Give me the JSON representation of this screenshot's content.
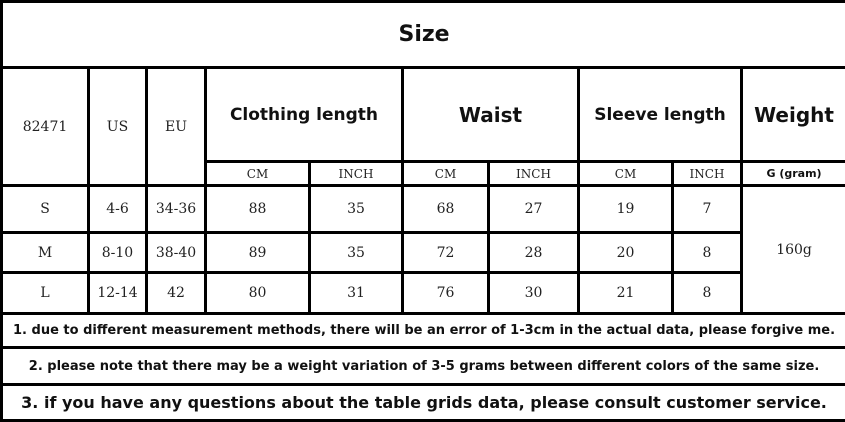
{
  "title": "Size",
  "header": {
    "style_no": "82471",
    "us": "US",
    "eu": "EU",
    "clothing_length": "Clothing length",
    "waist": "Waist",
    "sleeve_length": "Sleeve length",
    "weight": "Weight",
    "cm": "CM",
    "inch": "INCH",
    "weight_unit": "G (gram)"
  },
  "rows": [
    {
      "size": "S",
      "us": "4-6",
      "eu": "34-36",
      "length_cm": "88",
      "length_inch": "35",
      "waist_cm": "68",
      "waist_inch": "27",
      "sleeve_cm": "19",
      "sleeve_inch": "7"
    },
    {
      "size": "M",
      "us": "8-10",
      "eu": "38-40",
      "length_cm": "89",
      "length_inch": "35",
      "waist_cm": "72",
      "waist_inch": "28",
      "sleeve_cm": "20",
      "sleeve_inch": "8"
    },
    {
      "size": "L",
      "us": "12-14",
      "eu": "42",
      "length_cm": "80",
      "length_inch": "31",
      "waist_cm": "76",
      "waist_inch": "30",
      "sleeve_cm": "21",
      "sleeve_inch": "8"
    }
  ],
  "weight_value": "160g",
  "notes": [
    "1. due to different measurement methods, there will be an error of 1-3cm in the actual data, please forgive me.",
    "2. please note that there may be a weight variation of 3-5 grams between different colors of the same size.",
    "3. if you have any questions about the table grids data, please consult customer service."
  ]
}
